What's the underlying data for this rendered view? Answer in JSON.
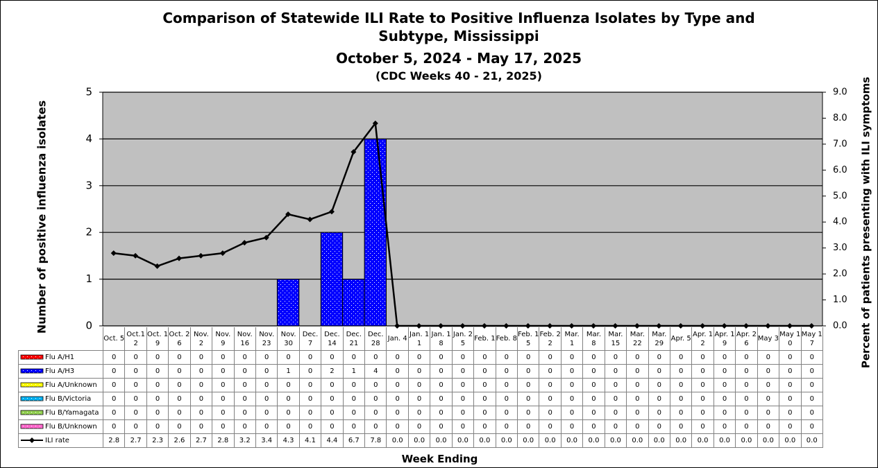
{
  "chart_data": {
    "type": "bar",
    "stacked": true,
    "title": "Comparison of Statewide ILI Rate to Positive Influenza Isolates by Type and Subtype, Mississippi",
    "subtitle": "October 5, 2024 - May 17, 2025",
    "note": "(CDC Weeks 40 - 21, 2025)",
    "x_label": "Week Ending",
    "y_label": "Number of positive influenza isolates",
    "y2_label": "Percent of patients presenting with ILI symptoms",
    "categories": [
      "Oct. 5",
      "Oct.12",
      "Oct. 19",
      "Oct. 26",
      "Nov. 2",
      "Nov. 9",
      "Nov. 16",
      "Nov. 23",
      "Nov. 30",
      "Dec. 7",
      "Dec. 14",
      "Dec. 21",
      "Dec. 28",
      "Jan. 4",
      "Jan. 11",
      "Jan. 18",
      "Jan. 25",
      "Feb. 1",
      "Feb. 8",
      "Feb. 15",
      "Feb. 22",
      "Mar. 1",
      "Mar. 8",
      "Mar. 15",
      "Mar. 22",
      "Mar. 29",
      "Apr. 5",
      "Apr. 12",
      "Apr. 19",
      "Apr. 26",
      "May 3",
      "May 10",
      "May 17"
    ],
    "series": [
      {
        "name": "Flu A/H1",
        "color": "#ff0000",
        "values": [
          0,
          0,
          0,
          0,
          0,
          0,
          0,
          0,
          0,
          0,
          0,
          0,
          0,
          0,
          0,
          0,
          0,
          0,
          0,
          0,
          0,
          0,
          0,
          0,
          0,
          0,
          0,
          0,
          0,
          0,
          0,
          0,
          0
        ]
      },
      {
        "name": "Flu A/H3",
        "color": "#0000ff",
        "values": [
          0,
          0,
          0,
          0,
          0,
          0,
          0,
          0,
          1,
          0,
          2,
          1,
          4,
          0,
          0,
          0,
          0,
          0,
          0,
          0,
          0,
          0,
          0,
          0,
          0,
          0,
          0,
          0,
          0,
          0,
          0,
          0,
          0
        ]
      },
      {
        "name": "Flu A/Unknown",
        "color": "#ffff00",
        "values": [
          0,
          0,
          0,
          0,
          0,
          0,
          0,
          0,
          0,
          0,
          0,
          0,
          0,
          0,
          0,
          0,
          0,
          0,
          0,
          0,
          0,
          0,
          0,
          0,
          0,
          0,
          0,
          0,
          0,
          0,
          0,
          0,
          0
        ]
      },
      {
        "name": "Flu B/Victoria",
        "color": "#00b0f0",
        "values": [
          0,
          0,
          0,
          0,
          0,
          0,
          0,
          0,
          0,
          0,
          0,
          0,
          0,
          0,
          0,
          0,
          0,
          0,
          0,
          0,
          0,
          0,
          0,
          0,
          0,
          0,
          0,
          0,
          0,
          0,
          0,
          0,
          0
        ]
      },
      {
        "name": "Flu B/Yamagata",
        "color": "#92d050",
        "values": [
          0,
          0,
          0,
          0,
          0,
          0,
          0,
          0,
          0,
          0,
          0,
          0,
          0,
          0,
          0,
          0,
          0,
          0,
          0,
          0,
          0,
          0,
          0,
          0,
          0,
          0,
          0,
          0,
          0,
          0,
          0,
          0,
          0
        ]
      },
      {
        "name": "Flu B/Unknown",
        "color": "#ff66cc",
        "values": [
          0,
          0,
          0,
          0,
          0,
          0,
          0,
          0,
          0,
          0,
          0,
          0,
          0,
          0,
          0,
          0,
          0,
          0,
          0,
          0,
          0,
          0,
          0,
          0,
          0,
          0,
          0,
          0,
          0,
          0,
          0,
          0,
          0
        ]
      },
      {
        "name": "ILI rate",
        "type": "line",
        "axis": "y2",
        "color": "#000000",
        "values": [
          2.8,
          2.7,
          2.3,
          2.6,
          2.7,
          2.8,
          3.2,
          3.4,
          4.3,
          4.1,
          4.4,
          6.7,
          7.8,
          0,
          0,
          0,
          0,
          0,
          0,
          0,
          0,
          0,
          0,
          0,
          0,
          0,
          0,
          0,
          0,
          0,
          0,
          0,
          0
        ],
        "value_labels": [
          "2.8",
          "2.7",
          "2.3",
          "2.6",
          "2.7",
          "2.8",
          "3.2",
          "3.4",
          "4.3",
          "4.1",
          "4.4",
          "6.7",
          "7.8",
          "0.0",
          "0.0",
          "0.0",
          "0.0",
          "0.0",
          "0.0",
          "0.0",
          "0.0",
          "0.0",
          "0.0",
          "0.0",
          "0.0",
          "0.0",
          "0.0",
          "0.0",
          "0.0",
          "0.0",
          "0.0",
          "0.0",
          "0.0"
        ]
      }
    ],
    "ylim": [
      0,
      5
    ],
    "yticks": [
      0,
      1,
      2,
      3,
      4,
      5
    ],
    "y2lim": [
      0,
      9
    ],
    "y2ticks": [
      {
        "value": 0,
        "label": "0.0"
      },
      {
        "value": 1,
        "label": "1.0"
      },
      {
        "value": 2,
        "label": "2.0"
      },
      {
        "value": 3,
        "label": "3.0"
      },
      {
        "value": 4,
        "label": "4.0"
      },
      {
        "value": 5,
        "label": "5.0"
      },
      {
        "value": 6,
        "label": "6.0"
      },
      {
        "value": 7,
        "label": "7.0"
      },
      {
        "value": 8,
        "label": "8.0"
      },
      {
        "value": 9,
        "label": "9.0"
      }
    ],
    "grid": true
  }
}
